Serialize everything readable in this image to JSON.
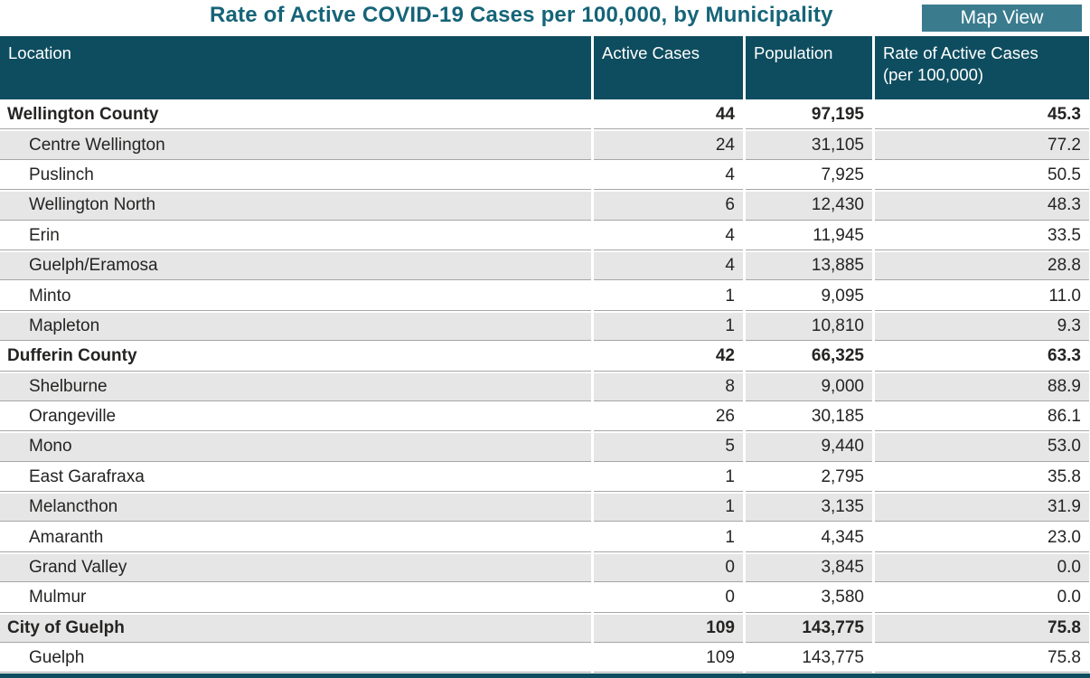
{
  "title": "Rate of Active COVID-19 Cases per 100,000, by Municipality",
  "toolbar": {
    "map_view_label": "Map View"
  },
  "colors": {
    "header_bg": "#0e4d5f",
    "header_text": "#ffffff",
    "title_text": "#156478",
    "button_bg": "#3a7b8e",
    "button_text": "#ffffff",
    "zebra_row": "#e6e6e6",
    "row_border": "#a6a6a6",
    "body_text": "#252423"
  },
  "table": {
    "columns": [
      {
        "label": "Location"
      },
      {
        "label": "Active Cases"
      },
      {
        "label": "Population"
      },
      {
        "label": "Rate of Active Cases",
        "label2": "(per 100,000)"
      }
    ],
    "rows": [
      {
        "location": "Wellington County",
        "active_cases": "44",
        "population": "97,195",
        "rate": "45.3",
        "group": true
      },
      {
        "location": "Centre Wellington",
        "active_cases": "24",
        "population": "31,105",
        "rate": "77.2",
        "group": false
      },
      {
        "location": "Puslinch",
        "active_cases": "4",
        "population": "7,925",
        "rate": "50.5",
        "group": false
      },
      {
        "location": "Wellington North",
        "active_cases": "6",
        "population": "12,430",
        "rate": "48.3",
        "group": false
      },
      {
        "location": "Erin",
        "active_cases": "4",
        "population": "11,945",
        "rate": "33.5",
        "group": false
      },
      {
        "location": "Guelph/Eramosa",
        "active_cases": "4",
        "population": "13,885",
        "rate": "28.8",
        "group": false
      },
      {
        "location": "Minto",
        "active_cases": "1",
        "population": "9,095",
        "rate": "11.0",
        "group": false
      },
      {
        "location": "Mapleton",
        "active_cases": "1",
        "population": "10,810",
        "rate": "9.3",
        "group": false
      },
      {
        "location": "Dufferin County",
        "active_cases": "42",
        "population": "66,325",
        "rate": "63.3",
        "group": true
      },
      {
        "location": "Shelburne",
        "active_cases": "8",
        "population": "9,000",
        "rate": "88.9",
        "group": false
      },
      {
        "location": "Orangeville",
        "active_cases": "26",
        "population": "30,185",
        "rate": "86.1",
        "group": false
      },
      {
        "location": "Mono",
        "active_cases": "5",
        "population": "9,440",
        "rate": "53.0",
        "group": false
      },
      {
        "location": "East Garafraxa",
        "active_cases": "1",
        "population": "2,795",
        "rate": "35.8",
        "group": false
      },
      {
        "location": "Melancthon",
        "active_cases": "1",
        "population": "3,135",
        "rate": "31.9",
        "group": false
      },
      {
        "location": "Amaranth",
        "active_cases": "1",
        "population": "4,345",
        "rate": "23.0",
        "group": false
      },
      {
        "location": "Grand Valley",
        "active_cases": "0",
        "population": "3,845",
        "rate": "0.0",
        "group": false
      },
      {
        "location": "Mulmur",
        "active_cases": "0",
        "population": "3,580",
        "rate": "0.0",
        "group": false
      },
      {
        "location": "City of Guelph",
        "active_cases": "109",
        "population": "143,775",
        "rate": "75.8",
        "group": true
      },
      {
        "location": "Guelph",
        "active_cases": "109",
        "population": "143,775",
        "rate": "75.8",
        "group": false
      }
    ]
  }
}
